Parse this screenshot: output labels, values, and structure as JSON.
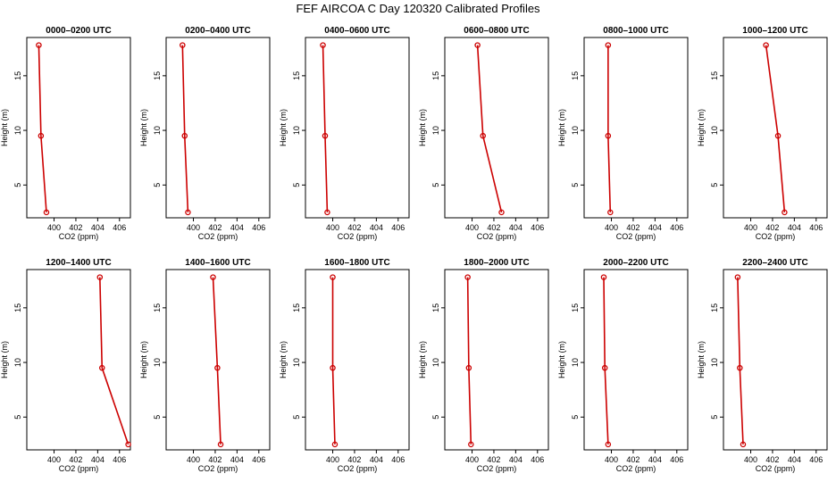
{
  "title": "FEF AIRCOA C  Day 120320  Calibrated Profiles",
  "colors": {
    "line": "#cc0000",
    "axis": "#000000"
  },
  "chart_data": {
    "type": "line",
    "xlabel": "CO2 (ppm)",
    "ylabel": "Height (m)",
    "xlim": [
      397.5,
      407
    ],
    "ylim": [
      2,
      18.5
    ],
    "xticks": [
      400,
      402,
      404,
      406
    ],
    "yticks": [
      5,
      10,
      15
    ],
    "heights": [
      17.8,
      9.5,
      2.5
    ],
    "panels": [
      {
        "title": "0000–0200 UTC",
        "co2": [
          398.6,
          398.8,
          399.3
        ]
      },
      {
        "title": "0200–0400 UTC",
        "co2": [
          399.0,
          399.2,
          399.5
        ]
      },
      {
        "title": "0400–0600 UTC",
        "co2": [
          399.1,
          399.3,
          399.5
        ]
      },
      {
        "title": "0600–0800 UTC",
        "co2": [
          400.5,
          401.0,
          402.7
        ]
      },
      {
        "title": "0800–1000 UTC",
        "co2": [
          399.7,
          399.7,
          399.9
        ]
      },
      {
        "title": "1000–1200 UTC",
        "co2": [
          401.4,
          402.5,
          403.1
        ]
      },
      {
        "title": "1200–1400 UTC",
        "co2": [
          404.2,
          404.4,
          406.8
        ]
      },
      {
        "title": "1400–1600 UTC",
        "co2": [
          401.8,
          402.2,
          402.5
        ]
      },
      {
        "title": "1600–1800 UTC",
        "co2": [
          400.0,
          400.0,
          400.2
        ]
      },
      {
        "title": "1800–2000 UTC",
        "co2": [
          399.6,
          399.7,
          399.9
        ]
      },
      {
        "title": "2000–2200 UTC",
        "co2": [
          399.3,
          399.4,
          399.7
        ]
      },
      {
        "title": "2200–2400 UTC",
        "co2": [
          398.8,
          399.0,
          399.3
        ]
      }
    ]
  }
}
